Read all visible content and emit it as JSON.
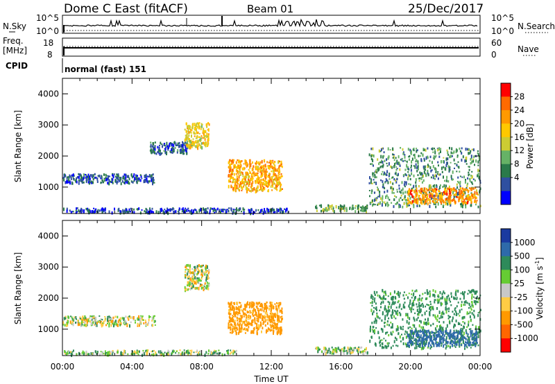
{
  "header": {
    "station": "Dome C East (fitACF)",
    "beam": "Beam 01",
    "date": "25/Dec/2017"
  },
  "panels": {
    "nsky": {
      "label": "N.Sky",
      "right_label": "N.Search",
      "ticks_left": [
        "10^5",
        "10^0"
      ],
      "ticks_right": [
        "10^5",
        "10^0"
      ]
    },
    "freq": {
      "label_line1": "Freq.",
      "label_line2": "[MHz]",
      "right_label": "Nave",
      "ticks_left": [
        "18",
        "8"
      ],
      "ticks_right": [
        "60",
        "0"
      ]
    },
    "cpid": {
      "label": "CPID",
      "value": "normal (fast) 151"
    }
  },
  "power_colorbar": {
    "label": "Power [dB]",
    "ticks": [
      "28",
      "24",
      "20",
      "16",
      "12",
      "8",
      "4"
    ],
    "colors": [
      "#ff0000",
      "#ff6a00",
      "#ff9900",
      "#ffc800",
      "#cccc33",
      "#66b266",
      "#2a7a4a",
      "#2f4fa0",
      "#0000ff"
    ]
  },
  "velocity_colorbar": {
    "label": "Velocity [m s",
    "label_sup": "-1",
    "label_end": "]",
    "ticks": [
      "1000",
      "500",
      "100",
      "25",
      "-25",
      "-100",
      "-500",
      "-1000"
    ],
    "colors": [
      "#1a3aa0",
      "#2e6aaa",
      "#2e8a5a",
      "#66cc33",
      "#c8c8c8",
      "#ffcc44",
      "#ff9900",
      "#ff6600",
      "#ff0000"
    ]
  },
  "chart_data": [
    {
      "type": "heatmap",
      "title": "",
      "xlabel": "",
      "ylabel": "Slant Range [km]",
      "y_ticks": [
        "1000",
        "2000",
        "3000",
        "4000"
      ],
      "ylim": [
        150,
        4500
      ],
      "x_ticks": [
        "00:00",
        "04:00",
        "08:00",
        "12:00",
        "16:00",
        "20:00",
        "00:00"
      ],
      "quantity": "Power [dB]",
      "regions": [
        {
          "x": [
            0.0,
            5.3
          ],
          "y": [
            1150,
            1450
          ],
          "value": 6
        },
        {
          "x": [
            0.0,
            13.0
          ],
          "y": [
            200,
            350
          ],
          "value": 5
        },
        {
          "x": [
            5.0,
            7.2
          ],
          "y": [
            2100,
            2500
          ],
          "value": 6
        },
        {
          "x": [
            7.0,
            8.4
          ],
          "y": [
            2300,
            3100
          ],
          "value": 18
        },
        {
          "x": [
            9.5,
            12.6
          ],
          "y": [
            900,
            1900
          ],
          "value": 22
        },
        {
          "x": [
            14.5,
            17.5
          ],
          "y": [
            250,
            450
          ],
          "value": 12
        },
        {
          "x": [
            17.6,
            24.0
          ],
          "y": [
            400,
            2300
          ],
          "value": 10
        },
        {
          "x": [
            19.8,
            23.8
          ],
          "y": [
            500,
            1000
          ],
          "value": 24
        }
      ]
    },
    {
      "type": "heatmap",
      "title": "",
      "xlabel": "Time UT",
      "ylabel": "Slant Range [km]",
      "y_ticks": [
        "1000",
        "2000",
        "3000",
        "4000"
      ],
      "ylim": [
        150,
        4500
      ],
      "x_ticks": [
        "00:00",
        "04:00",
        "08:00",
        "12:00",
        "16:00",
        "20:00",
        "00:00"
      ],
      "quantity": "Velocity [m s^-1]",
      "regions": [
        {
          "x": [
            0.0,
            5.3
          ],
          "y": [
            1150,
            1450
          ],
          "value": 0
        },
        {
          "x": [
            0.0,
            10.0
          ],
          "y": [
            200,
            350
          ],
          "value": 60
        },
        {
          "x": [
            7.0,
            8.4
          ],
          "y": [
            2300,
            3100
          ],
          "value": 0
        },
        {
          "x": [
            9.5,
            12.6
          ],
          "y": [
            900,
            1900
          ],
          "value": -200
        },
        {
          "x": [
            14.5,
            17.5
          ],
          "y": [
            250,
            450
          ],
          "value": 60
        },
        {
          "x": [
            17.6,
            24.0
          ],
          "y": [
            400,
            2300
          ],
          "value": 200
        },
        {
          "x": [
            19.8,
            23.8
          ],
          "y": [
            500,
            1000
          ],
          "value": 600
        }
      ]
    }
  ]
}
